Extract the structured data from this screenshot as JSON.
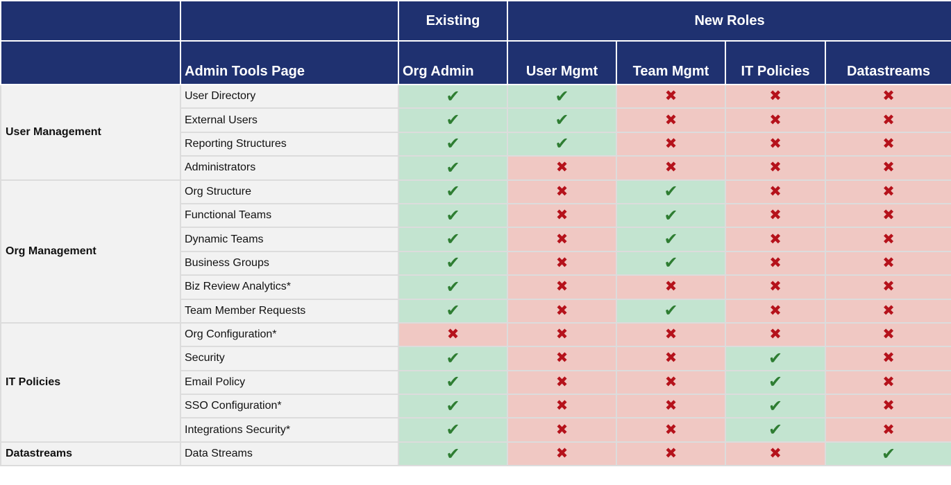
{
  "header": {
    "group_row": {
      "blank": "",
      "blank2": "",
      "existing": "Existing",
      "new_roles": "New Roles"
    },
    "columns": [
      "",
      "Admin Tools Page",
      "Org Admin",
      "User Mgmt",
      "Team Mgmt",
      "IT Policies",
      "Datastreams"
    ]
  },
  "symbols": {
    "yes": "✔",
    "no": "✖"
  },
  "colors": {
    "header_bg": "#1f3170",
    "yes_bg": "#c3e4d0",
    "no_bg": "#f0c8c3",
    "yes_mark": "#2e7d32",
    "no_mark": "#b5121b"
  },
  "groups": [
    {
      "name": "User Management",
      "rows": [
        {
          "page": "User Directory",
          "access": [
            true,
            true,
            false,
            false,
            false
          ]
        },
        {
          "page": "External Users",
          "access": [
            true,
            true,
            false,
            false,
            false
          ]
        },
        {
          "page": "Reporting Structures",
          "access": [
            true,
            true,
            false,
            false,
            false
          ]
        },
        {
          "page": "Administrators",
          "access": [
            true,
            false,
            false,
            false,
            false
          ]
        }
      ]
    },
    {
      "name": "Org Management",
      "rows": [
        {
          "page": "Org Structure",
          "access": [
            true,
            false,
            true,
            false,
            false
          ]
        },
        {
          "page": "Functional Teams",
          "access": [
            true,
            false,
            true,
            false,
            false
          ]
        },
        {
          "page": "Dynamic Teams",
          "access": [
            true,
            false,
            true,
            false,
            false
          ]
        },
        {
          "page": "Business Groups",
          "access": [
            true,
            false,
            true,
            false,
            false
          ]
        },
        {
          "page": "Biz Review Analytics*",
          "access": [
            true,
            false,
            false,
            false,
            false
          ]
        },
        {
          "page": "Team Member Requests",
          "access": [
            true,
            false,
            true,
            false,
            false
          ]
        }
      ]
    },
    {
      "name": "IT Policies",
      "rows": [
        {
          "page": "Org Configuration*",
          "access": [
            false,
            false,
            false,
            false,
            false
          ]
        },
        {
          "page": "Security",
          "access": [
            true,
            false,
            false,
            true,
            false
          ]
        },
        {
          "page": "Email Policy",
          "access": [
            true,
            false,
            false,
            true,
            false
          ]
        },
        {
          "page": "SSO Configuration*",
          "access": [
            true,
            false,
            false,
            true,
            false
          ]
        },
        {
          "page": "Integrations Security*",
          "access": [
            true,
            false,
            false,
            true,
            false
          ]
        }
      ]
    },
    {
      "name": "Datastreams",
      "rows": [
        {
          "page": "Data Streams",
          "access": [
            true,
            false,
            false,
            false,
            true
          ]
        }
      ]
    }
  ]
}
